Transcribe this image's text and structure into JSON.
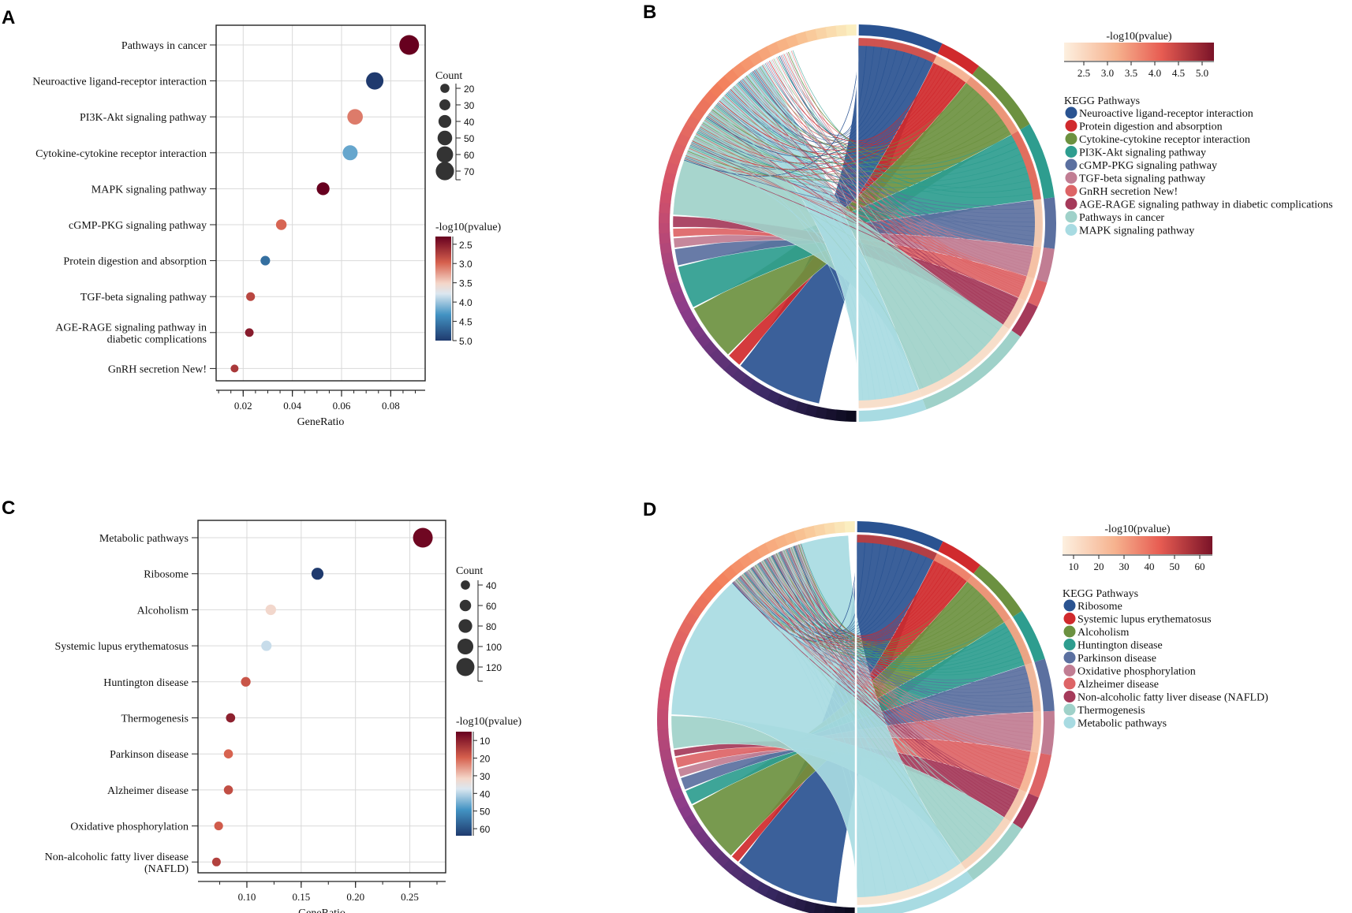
{
  "panels": {
    "A": "A",
    "B": "B",
    "C": "C",
    "D": "D"
  },
  "chart_data": [
    {
      "id": "A",
      "type": "scatter",
      "subtype": "dot-plot",
      "xlabel": "GeneRatio",
      "xticks": [
        0.02,
        0.04,
        0.06,
        0.08
      ],
      "xtick_labels": [
        "0.02",
        "0.04",
        "0.06",
        "0.08"
      ],
      "xlim": [
        0.009,
        0.094
      ],
      "categories": [
        "Pathways in cancer",
        "Neuroactive ligand-receptor interaction",
        "PI3K-Akt signaling pathway",
        "Cytokine-cytokine receptor interaction",
        "MAPK signaling pathway",
        "cGMP-PKG signaling pathway",
        "Protein digestion and absorption",
        "TGF-beta signaling pathway",
        "AGE-RAGE signaling pathway in\ndiabetic complications",
        "GnRH secretion New!"
      ],
      "x": [
        0.0875,
        0.0735,
        0.0655,
        0.0635,
        0.0525,
        0.0355,
        0.029,
        0.023,
        0.0225,
        0.0165
      ],
      "count": [
        78,
        65,
        55,
        52,
        40,
        28,
        22,
        18,
        17,
        13
      ],
      "pvalue_log": [
        2.2,
        5.0,
        3.1,
        4.2,
        2.3,
        3.0,
        4.6,
        2.8,
        2.5,
        2.7
      ],
      "size_legend": {
        "title": "Count",
        "values": [
          20,
          30,
          40,
          50,
          60,
          70
        ],
        "labels": [
          "20",
          "30",
          "40",
          "50",
          "60",
          "70"
        ]
      },
      "color_legend": {
        "title": "-log10(pvalue)",
        "min": 2.3,
        "max": 5.0,
        "ticks": [
          2.5,
          3.0,
          3.5,
          4.0,
          4.5,
          5.0
        ],
        "tick_labels": [
          "2.5",
          "3.0",
          "3.5",
          "4.0",
          "4.5",
          "5.0"
        ]
      }
    },
    {
      "id": "B",
      "type": "chord",
      "color_legend": {
        "title": "-log10(pvalue)",
        "ticks": [
          "2.5",
          "3.0",
          "3.5",
          "4.0",
          "4.5",
          "5.0"
        ]
      },
      "pathway_legend_title": "KEGG Pathways",
      "pathways": [
        {
          "name": "Neuroactive ligand-receptor interaction",
          "color": "#2a5391"
        },
        {
          "name": "Protein digestion and absorption",
          "color": "#d02a2d"
        },
        {
          "name": "Cytokine-cytokine receptor interaction",
          "color": "#6c9140"
        },
        {
          "name": "PI3K-Akt signaling pathway",
          "color": "#2e9d8f"
        },
        {
          "name": "cGMP-PKG signaling pathway",
          "color": "#5b70a0"
        },
        {
          "name": "TGF-beta signaling pathway",
          "color": "#c17d93"
        },
        {
          "name": "GnRH secretion New!",
          "color": "#dd6466"
        },
        {
          "name": "AGE-RAGE signaling pathway in diabetic complications",
          "color": "#a53a5a"
        },
        {
          "name": "Pathways in cancer",
          "color": "#9fd1c9"
        },
        {
          "name": "MAPK signaling pathway",
          "color": "#a8dbe2"
        }
      ]
    },
    {
      "id": "C",
      "type": "scatter",
      "subtype": "dot-plot",
      "xlabel": "GeneRatio",
      "xticks": [
        0.1,
        0.15,
        0.2,
        0.25
      ],
      "xtick_labels": [
        "0.10",
        "0.15",
        "0.20",
        "0.25"
      ],
      "xlim": [
        0.055,
        0.283
      ],
      "categories": [
        "Metabolic pathways",
        "Ribosome",
        "Alcoholism",
        "Systemic lupus erythematosus",
        "Huntington disease",
        "Thermogenesis",
        "Parkinson disease",
        "Alzheimer disease",
        "Oxidative phosphorylation",
        "Non-alcoholic fatty liver disease\n(NAFLD)"
      ],
      "x": [
        0.262,
        0.165,
        0.122,
        0.118,
        0.099,
        0.085,
        0.083,
        0.083,
        0.074,
        0.072
      ],
      "count": [
        135,
        65,
        52,
        50,
        44,
        40,
        39,
        39,
        36,
        35
      ],
      "pvalue_log": [
        6,
        64,
        32,
        39,
        18,
        10,
        20,
        17,
        19,
        15
      ],
      "size_legend": {
        "title": "Count",
        "values": [
          40,
          60,
          80,
          100,
          120
        ],
        "labels": [
          "40",
          "60",
          "80",
          "100",
          "120"
        ]
      },
      "color_legend": {
        "title": "-log10(pvalue)",
        "min": 5,
        "max": 64,
        "ticks": [
          10,
          20,
          30,
          40,
          50,
          60
        ],
        "tick_labels": [
          "10",
          "20",
          "30",
          "40",
          "50",
          "60"
        ]
      }
    },
    {
      "id": "D",
      "type": "chord",
      "color_legend": {
        "title": "-log10(pvalue)",
        "ticks": [
          "10",
          "20",
          "30",
          "40",
          "50",
          "60"
        ]
      },
      "pathway_legend_title": "KEGG Pathways",
      "pathways": [
        {
          "name": "Ribosome",
          "color": "#2a5391"
        },
        {
          "name": "Systemic lupus erythematosus",
          "color": "#d02a2d"
        },
        {
          "name": "Alcoholism",
          "color": "#6c9140"
        },
        {
          "name": "Huntington disease",
          "color": "#2e9d8f"
        },
        {
          "name": "Parkinson disease",
          "color": "#5b70a0"
        },
        {
          "name": "Oxidative phosphorylation",
          "color": "#c17d93"
        },
        {
          "name": "Alzheimer disease",
          "color": "#dd6466"
        },
        {
          "name": "Non-alcoholic fatty liver disease (NAFLD)",
          "color": "#a53a5a"
        },
        {
          "name": "Thermogenesis",
          "color": "#9fd1c9"
        },
        {
          "name": "Metabolic pathways",
          "color": "#a8dbe2"
        }
      ]
    }
  ]
}
